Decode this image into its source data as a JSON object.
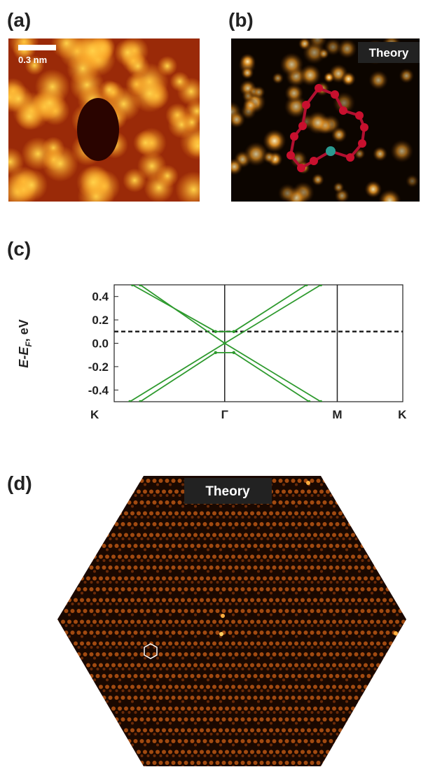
{
  "panels": {
    "a": {
      "label": "(a)",
      "scale_bar": "0.3 nm"
    },
    "b": {
      "label": "(b)",
      "tag": "Theory"
    },
    "c": {
      "label": "(c)"
    },
    "d": {
      "label": "(d)",
      "tag": "Theory"
    }
  },
  "chart_data": {
    "type": "line",
    "ylabel": {
      "main": "E-E",
      "sub": "F",
      "unit": ", eV"
    },
    "xlim": [
      0.15,
      2.37
    ],
    "ylim": [
      -0.5,
      0.5
    ],
    "xticks": [
      {
        "value": 0,
        "label": "K"
      },
      {
        "value": 1,
        "label": "Γ"
      },
      {
        "value": 1.866,
        "label": "M"
      },
      {
        "value": 2.366,
        "label": "K"
      }
    ],
    "yticks": [
      0.4,
      0.2,
      {
        "value": 0,
        "label": "0.0"
      },
      -0.2,
      -0.4
    ],
    "vlines": [
      1,
      1.866
    ],
    "fermi_level": 0.1,
    "series": [
      {
        "color": "#2e9a2e",
        "x": [
          0.29,
          0.93,
          1.07,
          1.63
        ],
        "values": [
          0.5,
          0.1,
          0.1,
          0.5
        ]
      },
      {
        "color": "#2e9a2e",
        "x": [
          0.35,
          1,
          1.74
        ],
        "values": [
          0.5,
          0,
          -0.5
        ]
      },
      {
        "color": "#2e9a2e",
        "x": [
          0.27,
          1,
          1.74
        ],
        "values": [
          -0.5,
          0,
          0.5
        ]
      },
      {
        "color": "#2e9a2e",
        "x": [
          0.35,
          0.93,
          1.07,
          1.65
        ],
        "values": [
          -0.5,
          -0.08,
          -0.08,
          -0.5
        ]
      }
    ]
  }
}
